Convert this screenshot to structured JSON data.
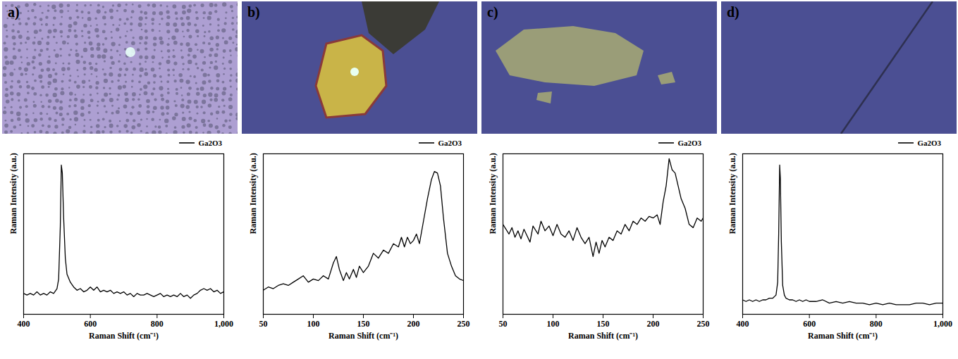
{
  "chart_data": [
    {
      "type": "line",
      "panel": "a)",
      "x_label": "Raman Shift (cm⁻¹)",
      "y_label": "Raman Intensity (a.u.)",
      "xlim": [
        400,
        1000
      ],
      "xticks": [
        400,
        600,
        800,
        1000
      ],
      "ylim": [
        0,
        1
      ],
      "yticks": [],
      "tick_labels": "x",
      "legend": "top-right",
      "series": [
        {
          "name": "Ga2O3",
          "color": "#000000",
          "x": [
            400,
            410,
            420,
            430,
            440,
            450,
            460,
            470,
            480,
            490,
            500,
            505,
            510,
            513,
            516,
            520,
            525,
            530,
            540,
            550,
            560,
            570,
            580,
            590,
            600,
            610,
            620,
            630,
            640,
            650,
            660,
            670,
            680,
            690,
            700,
            710,
            720,
            730,
            740,
            750,
            760,
            770,
            780,
            790,
            800,
            810,
            820,
            830,
            840,
            850,
            860,
            870,
            880,
            890,
            900,
            910,
            920,
            930,
            940,
            950,
            960,
            970,
            980,
            990,
            1000
          ],
          "values": [
            0.13,
            0.12,
            0.13,
            0.12,
            0.14,
            0.12,
            0.13,
            0.12,
            0.14,
            0.13,
            0.16,
            0.22,
            0.55,
            0.93,
            0.88,
            0.6,
            0.35,
            0.25,
            0.2,
            0.17,
            0.15,
            0.16,
            0.14,
            0.15,
            0.17,
            0.15,
            0.17,
            0.14,
            0.15,
            0.14,
            0.15,
            0.13,
            0.14,
            0.13,
            0.14,
            0.12,
            0.13,
            0.11,
            0.13,
            0.12,
            0.12,
            0.13,
            0.12,
            0.11,
            0.12,
            0.13,
            0.11,
            0.12,
            0.11,
            0.12,
            0.11,
            0.13,
            0.11,
            0.12,
            0.1,
            0.12,
            0.13,
            0.15,
            0.16,
            0.15,
            0.16,
            0.14,
            0.15,
            0.13,
            0.14
          ]
        }
      ]
    },
    {
      "type": "line",
      "panel": "b)",
      "x_label": "Raman Shift (cm⁻¹)",
      "y_label": "Raman Intensity (a.u.)",
      "xlim": [
        50,
        250
      ],
      "xticks": [
        50,
        100,
        150,
        200,
        250
      ],
      "ylim": [
        0,
        1
      ],
      "yticks": [],
      "tick_labels": "x",
      "legend": "top-right",
      "series": [
        {
          "name": "Ga2O3",
          "color": "#000000",
          "x": [
            50,
            55,
            60,
            65,
            70,
            75,
            80,
            85,
            90,
            95,
            100,
            105,
            110,
            115,
            120,
            123,
            126,
            130,
            133,
            136,
            140,
            143,
            146,
            150,
            155,
            160,
            165,
            170,
            175,
            180,
            185,
            188,
            191,
            194,
            197,
            200,
            203,
            206,
            210,
            214,
            218,
            221,
            224,
            227,
            230,
            234,
            238,
            242,
            246,
            250
          ],
          "values": [
            0.15,
            0.17,
            0.16,
            0.18,
            0.19,
            0.18,
            0.2,
            0.22,
            0.24,
            0.2,
            0.22,
            0.21,
            0.24,
            0.22,
            0.32,
            0.36,
            0.28,
            0.21,
            0.26,
            0.22,
            0.28,
            0.23,
            0.3,
            0.26,
            0.3,
            0.38,
            0.35,
            0.4,
            0.38,
            0.44,
            0.42,
            0.48,
            0.42,
            0.48,
            0.44,
            0.46,
            0.5,
            0.44,
            0.58,
            0.72,
            0.84,
            0.89,
            0.88,
            0.8,
            0.6,
            0.38,
            0.3,
            0.24,
            0.22,
            0.21
          ]
        }
      ]
    },
    {
      "type": "line",
      "panel": "c)",
      "x_label": "Raman Shift (cm⁻¹)",
      "y_label": "Raman Intensity (a.u.)",
      "xlim": [
        50,
        250
      ],
      "xticks": [
        50,
        100,
        150,
        200,
        250
      ],
      "ylim": [
        0,
        1
      ],
      "yticks": [],
      "tick_labels": "x",
      "legend": "top-right",
      "series": [
        {
          "name": "Ga2O3",
          "color": "#000000",
          "x": [
            50,
            53,
            56,
            59,
            62,
            65,
            68,
            71,
            74,
            77,
            80,
            85,
            88,
            92,
            96,
            100,
            104,
            108,
            112,
            116,
            120,
            124,
            128,
            132,
            136,
            140,
            143,
            146,
            149,
            152,
            156,
            160,
            164,
            168,
            172,
            176,
            180,
            184,
            188,
            192,
            196,
            200,
            204,
            207,
            210,
            213,
            216,
            219,
            222,
            225,
            228,
            232,
            236,
            240,
            244,
            248,
            250
          ],
          "values": [
            0.56,
            0.53,
            0.5,
            0.54,
            0.48,
            0.52,
            0.47,
            0.53,
            0.49,
            0.45,
            0.55,
            0.5,
            0.58,
            0.52,
            0.55,
            0.49,
            0.56,
            0.5,
            0.48,
            0.52,
            0.46,
            0.54,
            0.48,
            0.44,
            0.48,
            0.36,
            0.45,
            0.38,
            0.46,
            0.42,
            0.48,
            0.46,
            0.52,
            0.5,
            0.56,
            0.52,
            0.58,
            0.56,
            0.6,
            0.58,
            0.61,
            0.6,
            0.62,
            0.56,
            0.7,
            0.8,
            0.97,
            0.9,
            0.88,
            0.8,
            0.72,
            0.66,
            0.56,
            0.54,
            0.6,
            0.58,
            0.6
          ]
        }
      ]
    },
    {
      "type": "line",
      "panel": "d)",
      "x_label": "Raman Shift (cm⁻¹)",
      "y_label": "Raman Intensity (a.u.)",
      "xlim": [
        400,
        1000
      ],
      "xticks": [
        400,
        600,
        800,
        1000
      ],
      "ylim": [
        0,
        1
      ],
      "yticks": [],
      "tick_labels": "x",
      "legend": "top-right",
      "series": [
        {
          "name": "Ga2O3",
          "color": "#000000",
          "x": [
            400,
            410,
            420,
            430,
            440,
            450,
            460,
            470,
            480,
            490,
            500,
            505,
            508,
            511,
            513,
            516,
            520,
            525,
            530,
            540,
            550,
            560,
            570,
            580,
            590,
            600,
            620,
            640,
            660,
            680,
            700,
            720,
            740,
            760,
            780,
            800,
            820,
            840,
            860,
            880,
            900,
            920,
            940,
            960,
            980,
            1000
          ],
          "values": [
            0.09,
            0.08,
            0.09,
            0.08,
            0.09,
            0.08,
            0.09,
            0.09,
            0.1,
            0.1,
            0.12,
            0.2,
            0.5,
            0.93,
            0.85,
            0.45,
            0.18,
            0.12,
            0.1,
            0.09,
            0.09,
            0.08,
            0.09,
            0.08,
            0.09,
            0.08,
            0.08,
            0.09,
            0.07,
            0.08,
            0.07,
            0.08,
            0.07,
            0.07,
            0.06,
            0.07,
            0.06,
            0.07,
            0.06,
            0.06,
            0.06,
            0.07,
            0.07,
            0.06,
            0.07,
            0.07
          ]
        }
      ]
    }
  ]
}
